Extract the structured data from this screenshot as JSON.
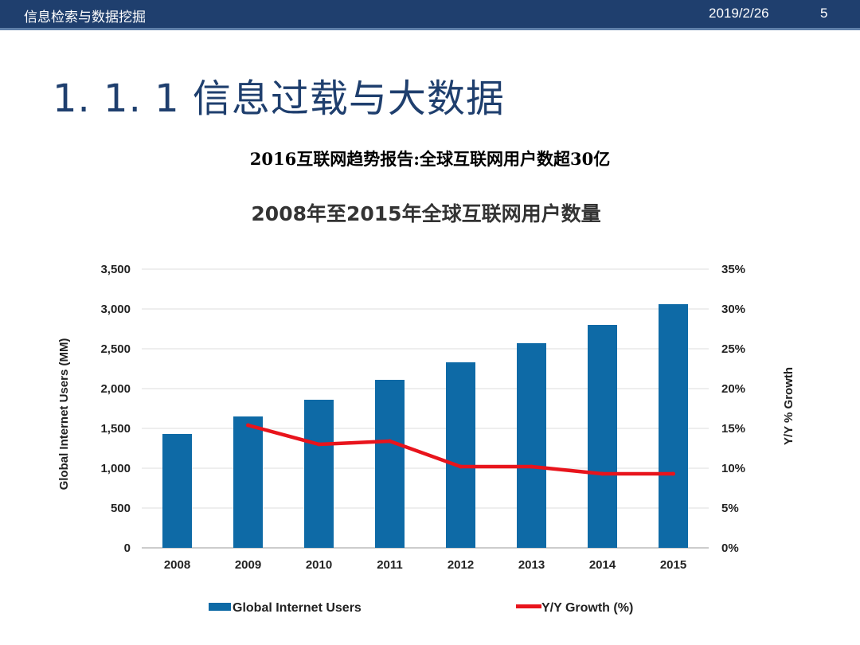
{
  "header": {
    "course": "信息检索与数据挖掘",
    "date": "2019/2/26",
    "page": "5"
  },
  "slide": {
    "title": "1. 1. 1  信息过载与大数据",
    "subtitle": "2016互联网趋势报告:全球互联网用户数超30亿"
  },
  "colors": {
    "bar": "#0e6aa6",
    "line": "#e8141c",
    "header_bg": "#1f3f6e",
    "title": "#1f3f6e"
  },
  "chart_data": {
    "type": "bar",
    "title": "2008年至2015年全球互联网用户数量",
    "categories": [
      "2008",
      "2009",
      "2010",
      "2011",
      "2012",
      "2013",
      "2014",
      "2015"
    ],
    "series": [
      {
        "name": "Global Internet Users",
        "type": "bar",
        "axis": "left",
        "values": [
          1430,
          1650,
          1860,
          2110,
          2330,
          2570,
          2800,
          3060
        ]
      },
      {
        "name": "Y/Y Growth (%)",
        "type": "line",
        "axis": "right",
        "values": [
          null,
          15.4,
          13.0,
          13.4,
          10.2,
          10.2,
          9.3,
          9.3
        ]
      }
    ],
    "ylabel": "Global Internet Users (MM)",
    "y2label": "Y/Y % Growth",
    "ylim": [
      0,
      3500
    ],
    "y2lim": [
      0,
      35
    ],
    "yticks": [
      "0",
      "500",
      "1,000",
      "1,500",
      "2,000",
      "2,500",
      "3,000",
      "3,500"
    ],
    "y2ticks": [
      "0%",
      "5%",
      "10%",
      "15%",
      "20%",
      "25%",
      "30%",
      "35%"
    ],
    "grid": true,
    "legend": "bottom"
  }
}
